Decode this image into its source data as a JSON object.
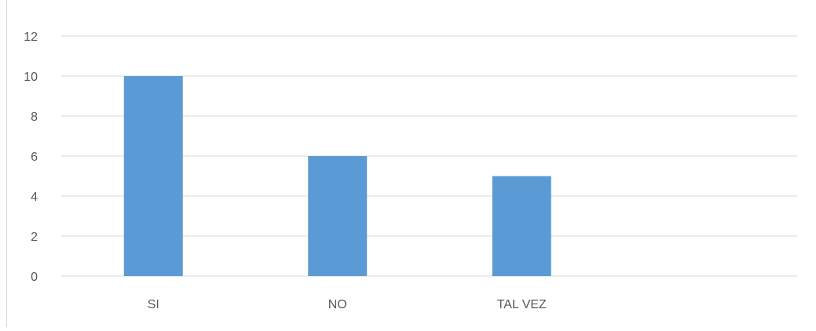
{
  "chart_data": {
    "type": "bar",
    "categories": [
      "SI",
      "NO",
      "TAL VEZ",
      ""
    ],
    "values": [
      10,
      6,
      5,
      null
    ],
    "ylim": [
      0,
      12
    ],
    "yticks": [
      0,
      2,
      4,
      6,
      8,
      10,
      12
    ],
    "grid": true,
    "legend": "none",
    "colors": {
      "bar": "#5b9bd5",
      "grid": "#d9d9d9",
      "text": "#595959"
    }
  }
}
